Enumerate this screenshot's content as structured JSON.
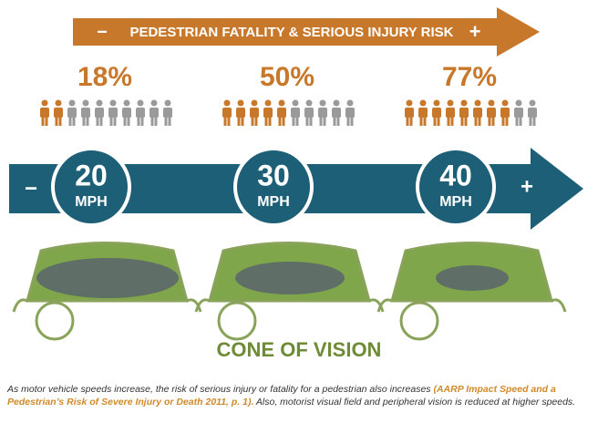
{
  "header": {
    "title": "PEDESTRIAN FATALITY & SERIOUS INJURY RISK",
    "minus": "−",
    "plus": "+"
  },
  "panels": [
    {
      "risk": {
        "value": 18,
        "label": "18%"
      },
      "speed": "20",
      "unit": "MPH"
    },
    {
      "risk": {
        "value": 50,
        "label": "50%"
      },
      "speed": "30",
      "unit": "MPH"
    },
    {
      "risk": {
        "value": 77,
        "label": "77%"
      },
      "speed": "40",
      "unit": "MPH"
    }
  ],
  "speed_arrow": {
    "minus": "−",
    "plus": "+"
  },
  "vision_title": "CONE OF VISION",
  "caption": {
    "text1": "As motor vehicle speeds increase, the risk of serious injury or fatality for a pedestrian also increases ",
    "citation": "(AARP Impact Speed and a Pedestrian’s Risk of Severe Injury or Death 2011, p. 1).",
    "text2": " Also, motorist visual field and peripheral vision is reduced at higher speeds."
  }
}
